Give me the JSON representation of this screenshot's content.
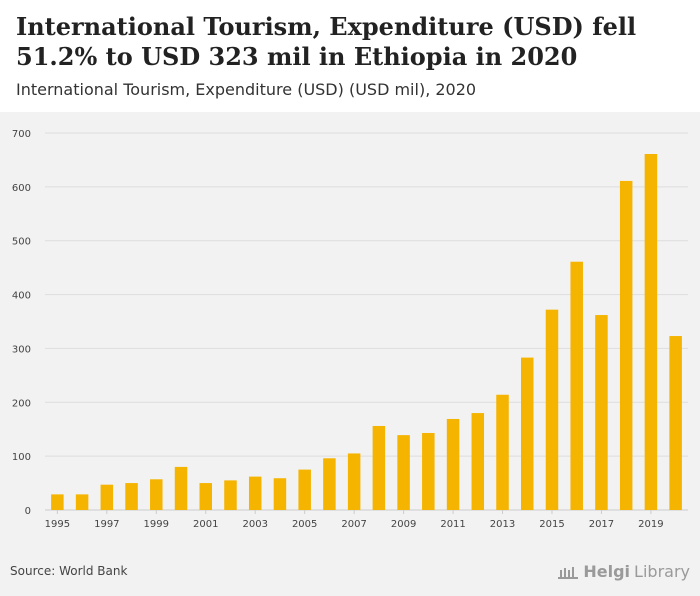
{
  "header": {
    "title": "International Tourism, Expenditure (USD) fell 51.2% to USD 323 mil in Ethiopia in 2020",
    "subtitle": "International Tourism, Expenditure (USD) (USD mil), 2020"
  },
  "footer": {
    "source": "Source: World Bank",
    "logo_a": "Helgi",
    "logo_b": "Library"
  },
  "colors": {
    "bar": "#f5b400",
    "grid": "#dddddd",
    "axis_text": "#444444"
  },
  "chart_data": {
    "type": "bar",
    "title": "International Tourism, Expenditure (USD) (USD mil)",
    "xlabel": "",
    "ylabel": "",
    "ylim": [
      0,
      700
    ],
    "yticks": [
      0,
      100,
      200,
      300,
      400,
      500,
      600,
      700
    ],
    "categories": [
      "1995",
      "1996",
      "1997",
      "1998",
      "1999",
      "2000",
      "2001",
      "2002",
      "2003",
      "2004",
      "2005",
      "2006",
      "2007",
      "2008",
      "2009",
      "2010",
      "2011",
      "2012",
      "2013",
      "2014",
      "2015",
      "2016",
      "2017",
      "2018",
      "2019",
      "2020"
    ],
    "xtick_labels": [
      "1995",
      "1997",
      "1999",
      "2001",
      "2003",
      "2005",
      "2007",
      "2009",
      "2011",
      "2013",
      "2015",
      "2017",
      "2019"
    ],
    "values": [
      29,
      29,
      47,
      50,
      57,
      80,
      50,
      55,
      62,
      59,
      75,
      96,
      105,
      156,
      139,
      143,
      169,
      180,
      214,
      283,
      372,
      461,
      362,
      611,
      661,
      323
    ]
  }
}
